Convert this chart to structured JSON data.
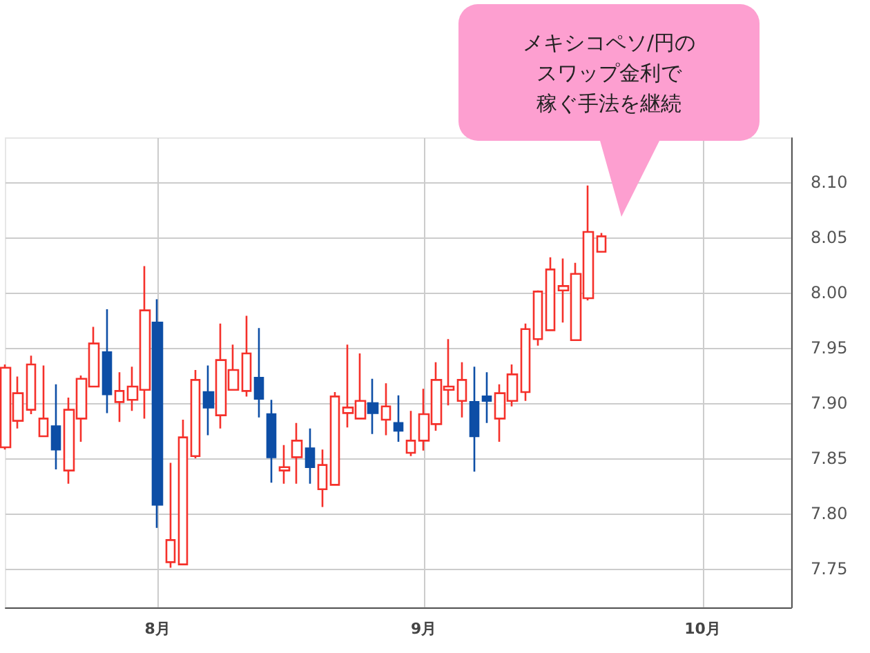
{
  "chart_data": {
    "type": "candlestick",
    "categories": [
      null,
      null,
      null,
      null,
      null,
      null,
      null,
      null,
      null,
      null,
      null,
      null,
      "8月",
      null,
      null,
      null,
      null,
      null,
      null,
      null,
      null,
      null,
      null,
      null,
      null,
      null,
      null,
      null,
      null,
      null,
      null,
      null,
      null,
      "9月",
      null,
      null,
      null,
      null,
      null,
      null,
      null,
      null,
      null,
      null,
      null,
      null,
      null,
      null,
      null,
      null,
      null,
      null,
      null,
      null,
      null,
      "10月",
      null,
      null,
      null,
      null,
      null,
      null,
      null
    ],
    "ohlc": [
      [
        7.86,
        7.935,
        7.858,
        7.932
      ],
      [
        7.884,
        7.924,
        7.877,
        7.909
      ],
      [
        7.894,
        7.943,
        7.89,
        7.935
      ],
      [
        7.87,
        7.934,
        7.87,
        7.886
      ],
      [
        7.879,
        7.917,
        7.84,
        7.858
      ],
      [
        7.839,
        7.905,
        7.827,
        7.894
      ],
      [
        7.886,
        7.925,
        7.865,
        7.922
      ],
      [
        7.915,
        7.969,
        7.915,
        7.954
      ],
      [
        7.946,
        7.985,
        7.891,
        7.908
      ],
      [
        7.901,
        7.928,
        7.883,
        7.911
      ],
      [
        7.903,
        7.933,
        7.893,
        7.915
      ],
      [
        7.912,
        8.024,
        7.886,
        7.984
      ],
      [
        7.973,
        7.994,
        7.787,
        7.808
      ],
      [
        7.756,
        7.846,
        7.751,
        7.776
      ],
      [
        7.754,
        7.885,
        7.754,
        7.869
      ],
      [
        7.852,
        7.93,
        7.85,
        7.921
      ],
      [
        7.91,
        7.934,
        7.871,
        7.896
      ],
      [
        7.889,
        7.972,
        7.877,
        7.939
      ],
      [
        7.912,
        7.953,
        7.912,
        7.93
      ],
      [
        7.911,
        7.979,
        7.906,
        7.945
      ],
      [
        7.923,
        7.968,
        7.887,
        7.904
      ],
      [
        7.89,
        7.903,
        7.828,
        7.851
      ],
      [
        7.839,
        7.862,
        7.827,
        7.842
      ],
      [
        7.851,
        7.882,
        7.827,
        7.866
      ],
      [
        7.859,
        7.877,
        7.827,
        7.842
      ],
      [
        7.822,
        7.858,
        7.806,
        7.844
      ],
      [
        7.826,
        7.91,
        7.826,
        7.906
      ],
      [
        7.891,
        7.953,
        7.878,
        7.896
      ],
      [
        7.886,
        7.945,
        7.886,
        7.902
      ],
      [
        7.9,
        7.922,
        7.872,
        7.891
      ],
      [
        7.885,
        7.918,
        7.871,
        7.897
      ],
      [
        7.882,
        7.907,
        7.865,
        7.875
      ],
      [
        7.855,
        7.893,
        7.852,
        7.866
      ],
      [
        7.866,
        7.913,
        7.857,
        7.89
      ],
      [
        7.881,
        7.937,
        7.875,
        7.921
      ],
      [
        7.912,
        7.958,
        7.898,
        7.915
      ],
      [
        7.902,
        7.937,
        7.887,
        7.921
      ],
      [
        7.901,
        7.933,
        7.838,
        7.87
      ],
      [
        7.906,
        7.928,
        7.882,
        7.902
      ],
      [
        7.886,
        7.917,
        7.865,
        7.909
      ],
      [
        7.902,
        7.935,
        7.897,
        7.926
      ],
      [
        7.91,
        7.972,
        7.902,
        7.967
      ],
      [
        7.958,
        8.002,
        7.952,
        8.001
      ],
      [
        7.966,
        8.032,
        7.966,
        8.021
      ],
      [
        8.002,
        8.031,
        7.973,
        8.006
      ],
      [
        7.957,
        8.027,
        7.957,
        8.017
      ],
      [
        7.995,
        8.097,
        7.993,
        8.055
      ],
      [
        8.037,
        8.054,
        8.037,
        8.051
      ],
      null,
      null,
      null,
      null,
      null,
      null,
      null,
      null,
      null,
      null,
      null,
      null,
      null,
      null,
      null
    ],
    "colors": [
      "#f5302a",
      "#f5302a",
      "#f5302a",
      "#f5302a",
      "#0d4ea6",
      "#f5302a",
      "#f5302a",
      "#f5302a",
      "#0d4ea6",
      "#f5302a",
      "#f5302a",
      "#f5302a",
      "#0d4ea6",
      "#f5302a",
      "#f5302a",
      "#f5302a",
      "#0d4ea6",
      "#f5302a",
      "#f5302a",
      "#f5302a",
      "#0d4ea6",
      "#0d4ea6",
      "#f5302a",
      "#f5302a",
      "#0d4ea6",
      "#f5302a",
      "#f5302a",
      "#f5302a",
      "#f5302a",
      "#0d4ea6",
      "#f5302a",
      "#0d4ea6",
      "#f5302a",
      "#f5302a",
      "#f5302a",
      "#f5302a",
      "#f5302a",
      "#0d4ea6",
      "#0d4ea6",
      "#f5302a",
      "#f5302a",
      "#f5302a",
      "#f5302a",
      "#f5302a",
      "#f5302a",
      "#f5302a",
      "#f5302a",
      "#f5302a",
      null,
      null,
      null,
      null,
      null,
      null,
      null,
      null,
      null,
      null,
      null,
      null,
      null,
      null,
      null
    ],
    "ylim": [
      7.715,
      8.14
    ],
    "yticks": [
      7.75,
      {
        "value": 7.8,
        "label": "7.80"
      },
      7.85,
      {
        "value": 7.9,
        "label": "7.90"
      },
      7.95,
      {
        "value": 8.0,
        "label": "8.00"
      },
      8.05,
      {
        "value": 8.1,
        "label": "8.10"
      }
    ],
    "grid": true,
    "annotations": [
      "メキシコペソ/円の",
      "スワップ金利で",
      "稼ぐ手法を継続"
    ]
  }
}
